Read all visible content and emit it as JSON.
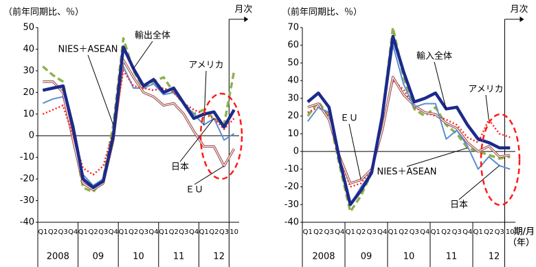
{
  "chart_data": [
    {
      "type": "line",
      "y_label": "（前年同期比、％）",
      "monthly_label": "月次",
      "x_label": [
        "期/月",
        "（年）"
      ],
      "categories": [
        "Q1",
        "Q2",
        "Q3",
        "Q4",
        "Q1",
        "Q2",
        "Q3",
        "Q4",
        "Q1",
        "Q2",
        "Q3",
        "Q4",
        "Q1",
        "Q2",
        "Q3",
        "Q4",
        "Q1",
        "Q2",
        "Q3",
        "10"
      ],
      "groups": [
        "2008",
        "09",
        "10",
        "11",
        "12"
      ],
      "ylim": [
        -40,
        50
      ],
      "yticks": [
        -40,
        -30,
        -20,
        -10,
        0,
        10,
        20,
        30,
        40,
        50
      ],
      "series": [
        {
          "name": "輸出全体",
          "color": "#1c2a8c",
          "style": "thick",
          "values": [
            21,
            22,
            23,
            4,
            -20,
            -24,
            -21,
            0,
            41,
            31,
            23,
            26,
            20,
            22,
            15,
            8,
            10,
            11,
            4,
            12
          ]
        },
        {
          "name": "NIES＋ASEAN",
          "color": "#8fb14c",
          "style": "dashed",
          "values": [
            32,
            28,
            25,
            0,
            -24,
            -26,
            -20,
            5,
            45,
            30,
            22,
            25,
            27,
            20,
            15,
            10,
            12,
            8,
            5,
            30
          ]
        },
        {
          "name": "アメリカ",
          "color": "#5b8fd0",
          "style": "solid",
          "values": [
            15,
            17,
            18,
            2,
            -18,
            -23,
            -20,
            0,
            32,
            22,
            22,
            24,
            19,
            20,
            15,
            10,
            5,
            8,
            -2,
            1
          ]
        },
        {
          "name": "ＥＵ",
          "color": "#a0524f",
          "style": "double",
          "values": [
            25,
            25,
            20,
            -2,
            -22,
            -25,
            -22,
            -2,
            35,
            27,
            20,
            18,
            14,
            15,
            10,
            2,
            -5,
            -5,
            -14,
            -6
          ]
        },
        {
          "name": "日本",
          "color": "#ff2020",
          "style": "dotted",
          "values": [
            10,
            12,
            14,
            0,
            -15,
            -18,
            -14,
            2,
            30,
            23,
            22,
            21,
            22,
            20,
            15,
            12,
            10,
            8,
            3,
            8
          ]
        }
      ]
    },
    {
      "type": "line",
      "y_label": "（前年同期比、％）",
      "monthly_label": "月次",
      "x_label": [
        "期/月",
        "（年）"
      ],
      "categories": [
        "Q1",
        "Q2",
        "Q3",
        "Q4",
        "Q1",
        "Q2",
        "Q3",
        "Q4",
        "Q1",
        "Q2",
        "Q3",
        "Q4",
        "Q1",
        "Q2",
        "Q3",
        "Q4",
        "Q1",
        "Q2",
        "Q3",
        "10"
      ],
      "groups": [
        "2008",
        "09",
        "10",
        "11",
        "12"
      ],
      "ylim": [
        -40,
        70
      ],
      "yticks": [
        -40,
        -30,
        -20,
        -10,
        0,
        10,
        20,
        30,
        40,
        50,
        60,
        70
      ],
      "series": [
        {
          "name": "輸入全体",
          "color": "#1c2a8c",
          "style": "thick",
          "values": [
            28,
            33,
            25,
            -5,
            -30,
            -22,
            -12,
            20,
            65,
            45,
            28,
            30,
            33,
            24,
            25,
            15,
            7,
            5,
            2,
            2
          ]
        },
        {
          "name": "NIES＋ASEAN",
          "color": "#8fb14c",
          "style": "dashed",
          "values": [
            20,
            28,
            20,
            -8,
            -34,
            -25,
            -12,
            20,
            70,
            42,
            24,
            20,
            25,
            15,
            10,
            2,
            0,
            -2,
            -4,
            -3
          ]
        },
        {
          "name": "アメリカ",
          "color": "#ff2020",
          "style": "dotted",
          "values": [
            22,
            25,
            20,
            -3,
            -20,
            -18,
            -10,
            15,
            40,
            35,
            25,
            22,
            20,
            18,
            15,
            8,
            5,
            18,
            10,
            8
          ]
        },
        {
          "name": "ＥＵ",
          "color": "#a0524f",
          "style": "double",
          "values": [
            25,
            27,
            18,
            -3,
            -18,
            -16,
            -10,
            12,
            42,
            32,
            26,
            22,
            21,
            16,
            13,
            5,
            0,
            3,
            -3,
            -2
          ]
        },
        {
          "name": "日本",
          "color": "#5b8fd0",
          "style": "solid",
          "values": [
            17,
            25,
            22,
            -5,
            -30,
            -20,
            -12,
            18,
            60,
            38,
            25,
            27,
            27,
            7,
            12,
            3,
            -10,
            -3,
            -8,
            -10
          ]
        }
      ]
    }
  ]
}
